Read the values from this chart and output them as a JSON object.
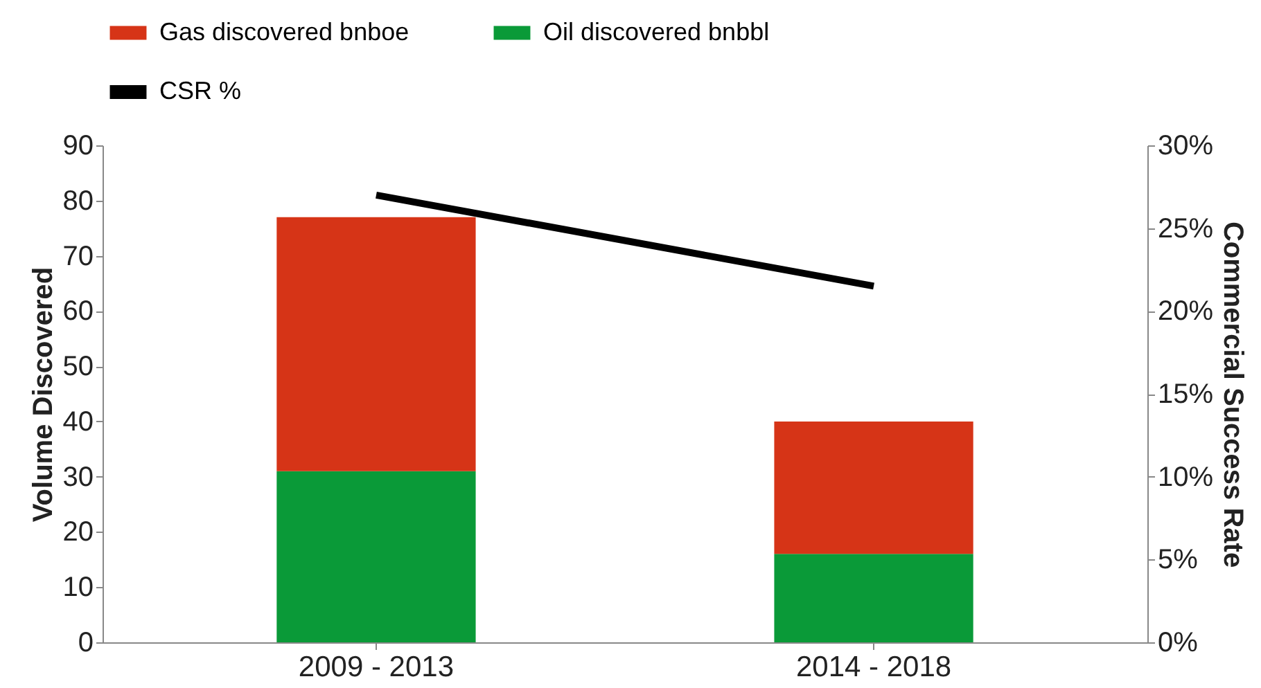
{
  "chart_data": {
    "type": "bar",
    "stacked": true,
    "categories": [
      "2009 - 2013",
      "2014 - 2018"
    ],
    "series": [
      {
        "name": "Oil discovered bnbbl",
        "color": "#0a9a38",
        "values": [
          31,
          16
        ]
      },
      {
        "name": "Gas discovered bnboe",
        "color": "#d63417",
        "values": [
          46,
          24
        ]
      },
      {
        "name": "CSR %",
        "color": "#000000",
        "type": "line",
        "axis": "y2",
        "values": [
          27,
          21.5
        ]
      }
    ],
    "ylabel": "Volume Discovered",
    "y2label": "Commercial Success Rate",
    "ylim": [
      0,
      90
    ],
    "yticks": [
      0,
      10,
      20,
      30,
      40,
      50,
      60,
      70,
      80,
      90
    ],
    "y2lim": [
      0,
      30
    ],
    "y2ticks": [
      {
        "value": 0,
        "label": "0%"
      },
      {
        "value": 5,
        "label": "5%"
      },
      {
        "value": 10,
        "label": "10%"
      },
      {
        "value": 15,
        "label": "15%"
      },
      {
        "value": 20,
        "label": "20%"
      },
      {
        "value": 25,
        "label": "25%"
      },
      {
        "value": 30,
        "label": "30%"
      }
    ],
    "grid": false,
    "legend": "top",
    "marker": "none",
    "line_style": "solid"
  }
}
